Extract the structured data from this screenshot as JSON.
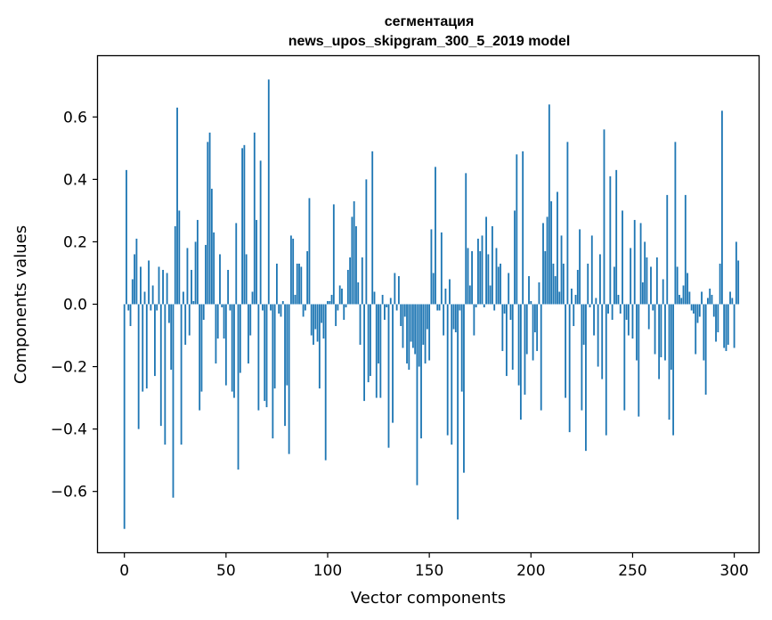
{
  "chart_data": {
    "type": "bar",
    "title": [
      "сегментация",
      "news_upos_skipgram_300_5_2019 model"
    ],
    "xlabel": "Vector components",
    "ylabel": "Components values",
    "xlim": [
      -13,
      312
    ],
    "ylim": [
      -0.795,
      0.795
    ],
    "xticks": [
      0,
      50,
      100,
      150,
      200,
      250,
      300
    ],
    "yticks": [
      -0.6,
      -0.4,
      -0.2,
      0.0,
      0.2,
      0.4,
      0.6
    ],
    "ytick_labels": [
      "−0.6",
      "−0.4",
      "−0.2",
      "0.0",
      "0.2",
      "0.4",
      "0.6"
    ],
    "bar_color": "#1f77b4",
    "values": [
      -0.72,
      0.43,
      -0.02,
      -0.07,
      0.08,
      0.16,
      0.21,
      -0.4,
      0.12,
      -0.28,
      0.04,
      -0.27,
      0.14,
      -0.02,
      0.06,
      -0.23,
      -0.02,
      0.12,
      -0.39,
      0.11,
      -0.45,
      0.1,
      -0.06,
      -0.21,
      -0.62,
      0.25,
      0.63,
      0.3,
      -0.45,
      0.04,
      -0.13,
      0.18,
      -0.1,
      0.11,
      0.01,
      0.2,
      0.27,
      -0.34,
      -0.28,
      -0.05,
      0.19,
      0.52,
      0.55,
      0.37,
      0.23,
      -0.19,
      -0.11,
      0.16,
      -0.01,
      -0.11,
      -0.26,
      0.11,
      -0.02,
      -0.28,
      -0.3,
      0.26,
      -0.53,
      -0.22,
      0.5,
      0.51,
      0.16,
      -0.19,
      -0.1,
      0.04,
      0.55,
      0.27,
      -0.34,
      0.46,
      -0.02,
      -0.31,
      -0.33,
      0.72,
      -0.02,
      -0.43,
      -0.27,
      0.13,
      -0.03,
      -0.04,
      0.01,
      -0.39,
      -0.26,
      -0.48,
      0.22,
      0.21,
      0.03,
      0.13,
      0.13,
      0.12,
      -0.04,
      -0.02,
      0.17,
      0.34,
      -0.1,
      -0.13,
      -0.08,
      -0.12,
      -0.27,
      -0.06,
      -0.11,
      -0.5,
      0.01,
      0.01,
      0.03,
      0.32,
      -0.07,
      -0.02,
      0.06,
      0.05,
      -0.05,
      -0.01,
      0.11,
      0.15,
      0.28,
      0.33,
      0.25,
      0.07,
      -0.13,
      0.15,
      -0.31,
      0.4,
      -0.25,
      -0.23,
      0.49,
      0.04,
      -0.3,
      -0.19,
      -0.3,
      0.03,
      -0.05,
      -0.01,
      -0.46,
      0.02,
      -0.38,
      0.1,
      -0.02,
      0.09,
      -0.07,
      -0.14,
      -0.04,
      -0.19,
      -0.21,
      -0.12,
      -0.14,
      -0.16,
      -0.58,
      -0.2,
      -0.43,
      -0.13,
      -0.19,
      -0.08,
      -0.18,
      0.24,
      0.1,
      0.44,
      -0.02,
      -0.02,
      0.23,
      -0.1,
      0.05,
      -0.42,
      0.08,
      -0.45,
      -0.08,
      -0.09,
      -0.69,
      -0.02,
      -0.28,
      -0.54,
      0.42,
      0.18,
      0.06,
      0.17,
      -0.1,
      -0.01,
      0.21,
      0.17,
      0.22,
      -0.01,
      0.28,
      0.16,
      0.06,
      0.25,
      -0.02,
      0.18,
      0.12,
      0.13,
      -0.15,
      -0.03,
      -0.23,
      0.1,
      -0.05,
      -0.21,
      0.3,
      0.48,
      -0.26,
      -0.37,
      0.49,
      -0.29,
      -0.16,
      0.09,
      0.01,
      -0.18,
      -0.09,
      -0.15,
      0.07,
      -0.34,
      0.26,
      0.17,
      0.28,
      0.64,
      0.33,
      0.13,
      0.09,
      0.36,
      0.04,
      0.22,
      0.13,
      -0.3,
      0.52,
      -0.41,
      0.05,
      -0.07,
      0.03,
      0.11,
      0.24,
      -0.34,
      -0.13,
      -0.47,
      0.13,
      -0.01,
      0.22,
      -0.1,
      0.02,
      -0.2,
      0.16,
      -0.24,
      0.56,
      -0.42,
      -0.03,
      0.41,
      -0.05,
      0.12,
      0.43,
      0.03,
      -0.03,
      0.3,
      -0.34,
      -0.05,
      -0.1,
      0.18,
      -0.11,
      0.27,
      -0.18,
      -0.36,
      0.26,
      0.07,
      0.2,
      0.15,
      -0.08,
      0.12,
      -0.02,
      -0.16,
      0.15,
      -0.24,
      -0.17,
      0.08,
      -0.18,
      0.35,
      -0.37,
      -0.21,
      -0.42,
      0.52,
      0.12,
      0.03,
      0.02,
      0.06,
      0.35,
      0.1,
      0.04,
      -0.02,
      -0.03,
      -0.16,
      -0.06,
      -0.04,
      0.04,
      -0.18,
      -0.29,
      0.02,
      0.05,
      0.03,
      -0.04,
      -0.12,
      -0.09,
      0.13,
      0.62,
      -0.14,
      -0.15,
      -0.13,
      0.04,
      0.02,
      -0.14,
      0.2,
      0.14
    ]
  }
}
